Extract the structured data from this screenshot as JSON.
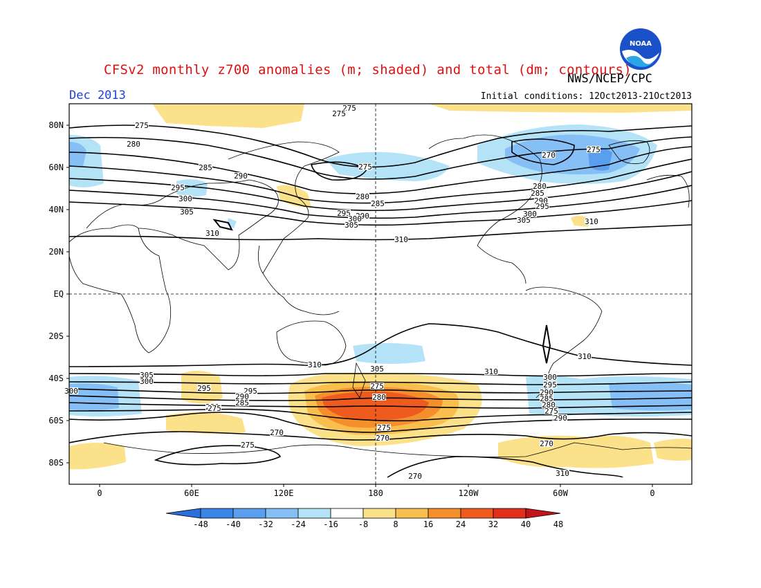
{
  "header": {
    "title": "CFSv2 monthly z700 anomalies (m; shaded) and total (dm; contours)",
    "agency": "NWS/NCEP/CPC",
    "month": "Dec 2013",
    "initial_conditions": "Initial conditions: 12Oct2013-21Oct2013"
  },
  "logo": {
    "text": "NOAA",
    "icon": "noaa-logo"
  },
  "axes": {
    "y_labels": [
      "80N",
      "60N",
      "40N",
      "20N",
      "EQ",
      "20S",
      "40S",
      "60S",
      "80S"
    ],
    "x_labels": [
      "0",
      "60E",
      "120E",
      "180",
      "120W",
      "60W",
      "0"
    ]
  },
  "colorbar": {
    "labels": [
      "-48",
      "-40",
      "-32",
      "-24",
      "-16",
      "-8",
      "8",
      "16",
      "24",
      "32",
      "40",
      "48"
    ],
    "colors": [
      "#2a6fdc",
      "#3a86e6",
      "#5a9ef0",
      "#86bff5",
      "#b4e2f7",
      "#ffffff",
      "#fbe18a",
      "#f8be4e",
      "#f48f2c",
      "#ef5a1e",
      "#e0301a",
      "#c0161a"
    ]
  },
  "contour_labels": [
    "275",
    "275",
    "280",
    "285",
    "290",
    "295",
    "300",
    "305",
    "310",
    "275",
    "280",
    "285",
    "290",
    "295",
    "300",
    "305",
    "310",
    "270",
    "275",
    "280",
    "285",
    "290",
    "295",
    "300",
    "305",
    "310",
    "310",
    "310",
    "310",
    "305",
    "300",
    "295",
    "290",
    "285",
    "280",
    "275",
    "270",
    "275",
    "295",
    "305",
    "300",
    "295",
    "290",
    "285",
    "280",
    "275",
    "270",
    "270",
    "270",
    "275",
    "270",
    "310",
    "300",
    "275",
    "290",
    "280",
    "275"
  ]
}
